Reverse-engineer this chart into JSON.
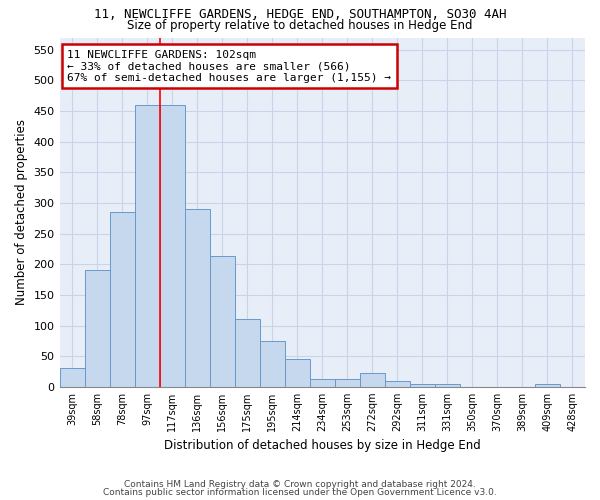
{
  "title1": "11, NEWCLIFFE GARDENS, HEDGE END, SOUTHAMPTON, SO30 4AH",
  "title2": "Size of property relative to detached houses in Hedge End",
  "xlabel": "Distribution of detached houses by size in Hedge End",
  "ylabel": "Number of detached properties",
  "bar_labels": [
    "39sqm",
    "58sqm",
    "78sqm",
    "97sqm",
    "117sqm",
    "136sqm",
    "156sqm",
    "175sqm",
    "195sqm",
    "214sqm",
    "234sqm",
    "253sqm",
    "272sqm",
    "292sqm",
    "311sqm",
    "331sqm",
    "350sqm",
    "370sqm",
    "389sqm",
    "409sqm",
    "428sqm"
  ],
  "bar_heights": [
    30,
    190,
    285,
    460,
    460,
    290,
    213,
    110,
    75,
    46,
    13,
    12,
    22,
    10,
    5,
    5,
    0,
    0,
    0,
    5,
    0
  ],
  "bar_color": "#c5d8ee",
  "bar_edge_color": "#6699cc",
  "property_line_x": 3.5,
  "annotation_text": "11 NEWCLIFFE GARDENS: 102sqm\n← 33% of detached houses are smaller (566)\n67% of semi-detached houses are larger (1,155) →",
  "annotation_box_color": "#cc0000",
  "grid_color": "#c8d4e8",
  "background_color": "#e8eef8",
  "ylim": [
    0,
    570
  ],
  "yticks": [
    0,
    50,
    100,
    150,
    200,
    250,
    300,
    350,
    400,
    450,
    500,
    550
  ],
  "footer1": "Contains HM Land Registry data © Crown copyright and database right 2024.",
  "footer2": "Contains public sector information licensed under the Open Government Licence v3.0."
}
